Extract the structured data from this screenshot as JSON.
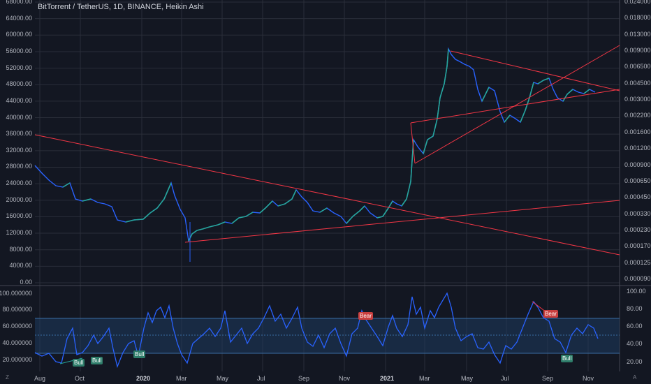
{
  "header": {
    "title": "BitTorrent / TetherUS, 1D, BINANCE, Heikin Ashi"
  },
  "left_axis_main": [
    "68000.00",
    "64000.00",
    "60000.00",
    "56000.00",
    "52000.00",
    "48000.00",
    "44000.00",
    "40000.00",
    "36000.00",
    "32000.00",
    "28000.00",
    "24000.00",
    "20000.00",
    "16000.00",
    "12000.00",
    "8000.00",
    "4000.00",
    "0.00"
  ],
  "right_axis_main": [
    "0.024000",
    "0.018000",
    "0.013000",
    "0.009000",
    "0.006500",
    "0.004500",
    "0.003000",
    "0.002200",
    "0.001600",
    "0.001200",
    "0.000900",
    "0.000650",
    "0.000450",
    "0.000330",
    "0.000230",
    "0.000170",
    "0.000125",
    "0.000090"
  ],
  "left_axis_osc": [
    "100.000000",
    "80.000000",
    "60.000000",
    "40.000000",
    "20.000000"
  ],
  "right_axis_osc": [
    "100.00",
    "80.00",
    "60.00",
    "40.00",
    "20.00"
  ],
  "time_axis": [
    "Aug",
    "Oct",
    "2020",
    "Mar",
    "May",
    "Jul",
    "Sep",
    "Nov",
    "2021",
    "Mar",
    "May",
    "Jul",
    "Sep",
    "Nov"
  ],
  "signals": [
    {
      "type": "bull",
      "label": "Bull"
    },
    {
      "type": "bull",
      "label": "Bull"
    },
    {
      "type": "bull",
      "label": "Bull"
    },
    {
      "type": "bear",
      "label": "Bear"
    },
    {
      "type": "bear",
      "label": "Bear"
    },
    {
      "type": "bull",
      "label": "Bull"
    }
  ],
  "corner": {
    "left": "Z",
    "right": "A"
  },
  "colors": {
    "background": "#131722",
    "price_up": "#26a69a",
    "price_down": "#2962ff",
    "trendline": "#f23645",
    "oscillator": "#2962ff",
    "band_fill": "#1e3a5f"
  }
}
